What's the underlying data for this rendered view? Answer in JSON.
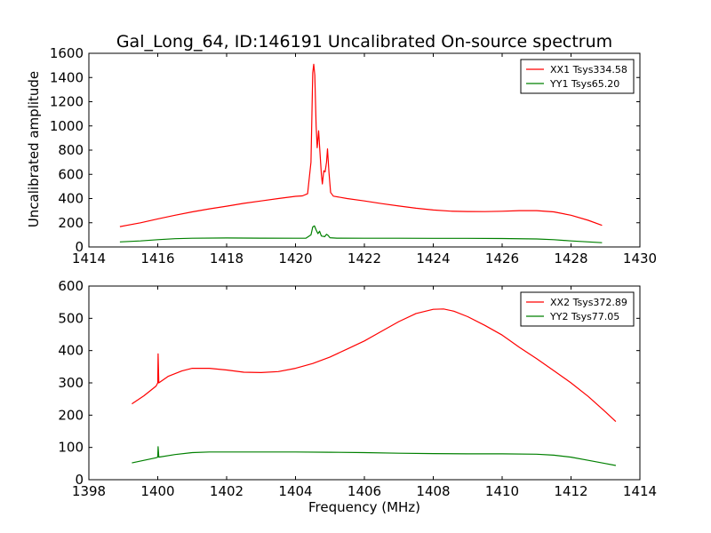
{
  "chart_data": [
    {
      "type": "line",
      "title": "Gal_Long_64, ID:146191 Uncalibrated On-source spectrum",
      "ylabel": "Uncalibrated amplitude",
      "xlabel": "",
      "xlim": [
        1414,
        1430
      ],
      "ylim": [
        0,
        1600
      ],
      "xticks": [
        1414,
        1416,
        1418,
        1420,
        1422,
        1424,
        1426,
        1428,
        1430
      ],
      "yticks": [
        0,
        200,
        400,
        600,
        800,
        1000,
        1200,
        1400,
        1600
      ],
      "legend_position": "top-right",
      "series": [
        {
          "name": "XX1 Tsys334.58",
          "color": "#ff0000",
          "points": [
            [
              1414.9,
              168
            ],
            [
              1415.5,
              200
            ],
            [
              1416,
              232
            ],
            [
              1416.5,
              262
            ],
            [
              1417,
              290
            ],
            [
              1417.5,
              315
            ],
            [
              1418,
              337
            ],
            [
              1418.5,
              360
            ],
            [
              1419,
              380
            ],
            [
              1419.5,
              400
            ],
            [
              1420,
              418
            ],
            [
              1420.2,
              422
            ],
            [
              1420.35,
              440
            ],
            [
              1420.45,
              700
            ],
            [
              1420.5,
              1440
            ],
            [
              1420.53,
              1510
            ],
            [
              1420.56,
              1420
            ],
            [
              1420.6,
              1000
            ],
            [
              1420.63,
              820
            ],
            [
              1420.67,
              960
            ],
            [
              1420.7,
              830
            ],
            [
              1420.75,
              600
            ],
            [
              1420.78,
              520
            ],
            [
              1420.82,
              630
            ],
            [
              1420.86,
              620
            ],
            [
              1420.9,
              700
            ],
            [
              1420.93,
              810
            ],
            [
              1420.97,
              620
            ],
            [
              1421.02,
              450
            ],
            [
              1421.1,
              420
            ],
            [
              1421.5,
              400
            ],
            [
              1422,
              380
            ],
            [
              1422.5,
              358
            ],
            [
              1423,
              338
            ],
            [
              1423.5,
              320
            ],
            [
              1424,
              305
            ],
            [
              1424.5,
              296
            ],
            [
              1425,
              293
            ],
            [
              1425.5,
              292
            ],
            [
              1426,
              295
            ],
            [
              1426.5,
              300
            ],
            [
              1427,
              300
            ],
            [
              1427.5,
              290
            ],
            [
              1428,
              262
            ],
            [
              1428.5,
              220
            ],
            [
              1428.9,
              178
            ]
          ]
        },
        {
          "name": "YY1 Tsys65.20",
          "color": "#008000",
          "points": [
            [
              1414.9,
              42
            ],
            [
              1415.5,
              50
            ],
            [
              1416,
              60
            ],
            [
              1416.5,
              68
            ],
            [
              1417,
              72
            ],
            [
              1418,
              74
            ],
            [
              1419,
              73
            ],
            [
              1420,
              72
            ],
            [
              1420.3,
              72
            ],
            [
              1420.45,
              100
            ],
            [
              1420.5,
              165
            ],
            [
              1420.55,
              175
            ],
            [
              1420.6,
              140
            ],
            [
              1420.65,
              110
            ],
            [
              1420.7,
              130
            ],
            [
              1420.75,
              90
            ],
            [
              1420.85,
              85
            ],
            [
              1420.9,
              105
            ],
            [
              1420.95,
              95
            ],
            [
              1421,
              76
            ],
            [
              1421.2,
              73
            ],
            [
              1422,
              72
            ],
            [
              1423,
              72
            ],
            [
              1424,
              71
            ],
            [
              1425,
              71
            ],
            [
              1426,
              70
            ],
            [
              1427,
              66
            ],
            [
              1427.5,
              60
            ],
            [
              1428,
              50
            ],
            [
              1428.9,
              35
            ]
          ]
        }
      ]
    },
    {
      "type": "line",
      "title": "",
      "ylabel": "",
      "xlabel": "Frequency (MHz)",
      "xlim": [
        1398,
        1414
      ],
      "ylim": [
        0,
        600
      ],
      "xticks": [
        1398,
        1400,
        1402,
        1404,
        1406,
        1408,
        1410,
        1412,
        1414
      ],
      "yticks": [
        0,
        100,
        200,
        300,
        400,
        500,
        600
      ],
      "legend_position": "top-right",
      "series": [
        {
          "name": "XX2 Tsys372.89",
          "color": "#ff0000",
          "points": [
            [
              1399.25,
              235
            ],
            [
              1399.6,
              260
            ],
            [
              1399.95,
              290
            ],
            [
              1400,
              300
            ],
            [
              1400.01,
              390
            ],
            [
              1400.03,
              300
            ],
            [
              1400.3,
              320
            ],
            [
              1400.7,
              337
            ],
            [
              1401,
              345
            ],
            [
              1401.5,
              345
            ],
            [
              1402,
              340
            ],
            [
              1402.5,
              333
            ],
            [
              1403,
              332
            ],
            [
              1403.5,
              335
            ],
            [
              1404,
              345
            ],
            [
              1404.5,
              360
            ],
            [
              1405,
              380
            ],
            [
              1405.5,
              405
            ],
            [
              1406,
              430
            ],
            [
              1406.5,
              460
            ],
            [
              1407,
              490
            ],
            [
              1407.5,
              515
            ],
            [
              1408,
              528
            ],
            [
              1408.3,
              529
            ],
            [
              1408.6,
              522
            ],
            [
              1409,
              505
            ],
            [
              1409.5,
              478
            ],
            [
              1410,
              448
            ],
            [
              1410.5,
              410
            ],
            [
              1411,
              375
            ],
            [
              1411.5,
              338
            ],
            [
              1412,
              300
            ],
            [
              1412.5,
              258
            ],
            [
              1413,
              210
            ],
            [
              1413.3,
              180
            ]
          ]
        },
        {
          "name": "YY2 Tsys77.05",
          "color": "#008000",
          "points": [
            [
              1399.25,
              52
            ],
            [
              1399.6,
              60
            ],
            [
              1399.95,
              68
            ],
            [
              1400,
              70
            ],
            [
              1400.01,
              102
            ],
            [
              1400.03,
              70
            ],
            [
              1400.5,
              78
            ],
            [
              1401,
              84
            ],
            [
              1401.5,
              86
            ],
            [
              1402,
              86
            ],
            [
              1403,
              86
            ],
            [
              1404,
              86
            ],
            [
              1405,
              85
            ],
            [
              1406,
              84
            ],
            [
              1407,
              82
            ],
            [
              1408,
              81
            ],
            [
              1409,
              80
            ],
            [
              1410,
              80
            ],
            [
              1411,
              79
            ],
            [
              1411.5,
              76
            ],
            [
              1412,
              70
            ],
            [
              1412.5,
              60
            ],
            [
              1413,
              50
            ],
            [
              1413.3,
              44
            ]
          ]
        }
      ]
    }
  ]
}
